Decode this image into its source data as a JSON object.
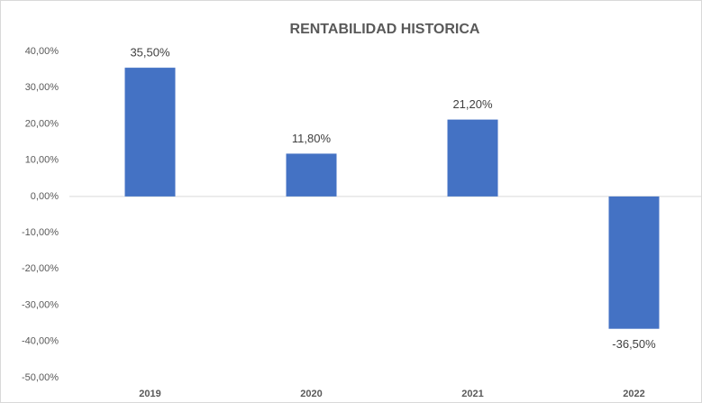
{
  "chart_data": {
    "type": "bar",
    "title": "RENTABILIDAD  HISTORICA",
    "categories": [
      "2019",
      "2020",
      "2021",
      "2022"
    ],
    "values": [
      35.5,
      11.8,
      21.2,
      -36.5
    ],
    "value_labels": [
      "35,50%",
      "11,80%",
      "21,20%",
      "-36,50%"
    ],
    "color": "#4472c4",
    "ylim": [
      -50,
      40
    ],
    "yticks": [
      {
        "value": -50,
        "label": "-50,00%"
      },
      {
        "value": -40,
        "label": "-40,00%"
      },
      {
        "value": -30,
        "label": "-30,00%"
      },
      {
        "value": -20,
        "label": "-20,00%"
      },
      {
        "value": -10,
        "label": "-10,00%"
      },
      {
        "value": 0,
        "label": "0,00%"
      },
      {
        "value": 10,
        "label": "10,00%"
      },
      {
        "value": 20,
        "label": "20,00%"
      },
      {
        "value": 30,
        "label": "30,00%"
      },
      {
        "value": 40,
        "label": "40,00%"
      }
    ],
    "grid": false
  }
}
